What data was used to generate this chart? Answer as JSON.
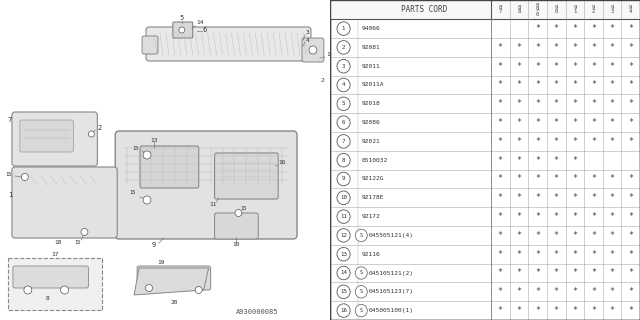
{
  "bg_color": "#ffffff",
  "diagram_ref": "A930000085",
  "parts": [
    {
      "num": "1",
      "code": "94066",
      "s_prefix": false,
      "stars": [
        0,
        0,
        1,
        1,
        1,
        1,
        1,
        1
      ]
    },
    {
      "num": "2",
      "code": "92081",
      "s_prefix": false,
      "stars": [
        1,
        1,
        1,
        1,
        1,
        1,
        1,
        1
      ]
    },
    {
      "num": "3",
      "code": "92011",
      "s_prefix": false,
      "stars": [
        1,
        1,
        1,
        1,
        1,
        1,
        1,
        1
      ]
    },
    {
      "num": "4",
      "code": "92011A",
      "s_prefix": false,
      "stars": [
        1,
        1,
        1,
        1,
        1,
        1,
        1,
        1
      ]
    },
    {
      "num": "5",
      "code": "92018",
      "s_prefix": false,
      "stars": [
        1,
        1,
        1,
        1,
        1,
        1,
        1,
        1
      ]
    },
    {
      "num": "6",
      "code": "92086",
      "s_prefix": false,
      "stars": [
        1,
        1,
        1,
        1,
        1,
        1,
        1,
        1
      ]
    },
    {
      "num": "7",
      "code": "92021",
      "s_prefix": false,
      "stars": [
        1,
        1,
        1,
        1,
        1,
        1,
        1,
        1
      ]
    },
    {
      "num": "8",
      "code": "0510032",
      "s_prefix": false,
      "stars": [
        1,
        1,
        1,
        1,
        1,
        0,
        0,
        0
      ]
    },
    {
      "num": "9",
      "code": "92122G",
      "s_prefix": false,
      "stars": [
        1,
        1,
        1,
        1,
        1,
        1,
        1,
        1
      ]
    },
    {
      "num": "10",
      "code": "92178E",
      "s_prefix": false,
      "stars": [
        1,
        1,
        1,
        1,
        1,
        1,
        1,
        1
      ]
    },
    {
      "num": "11",
      "code": "92172",
      "s_prefix": false,
      "stars": [
        1,
        1,
        1,
        1,
        1,
        1,
        1,
        1
      ]
    },
    {
      "num": "12",
      "code": "045505121(4)",
      "s_prefix": true,
      "stars": [
        1,
        1,
        1,
        1,
        1,
        1,
        1,
        1
      ]
    },
    {
      "num": "13",
      "code": "92116",
      "s_prefix": false,
      "stars": [
        1,
        1,
        1,
        1,
        1,
        1,
        1,
        1
      ]
    },
    {
      "num": "14",
      "code": "045105121(2)",
      "s_prefix": true,
      "stars": [
        1,
        1,
        1,
        1,
        1,
        1,
        1,
        1
      ]
    },
    {
      "num": "15",
      "code": "045105123(7)",
      "s_prefix": true,
      "stars": [
        1,
        1,
        1,
        1,
        1,
        1,
        1,
        1
      ]
    },
    {
      "num": "16",
      "code": "045005100(1)",
      "s_prefix": true,
      "stars": [
        1,
        1,
        1,
        1,
        1,
        1,
        1,
        1
      ]
    }
  ],
  "year_headers": [
    "8\n7",
    "8\n8",
    "8\n9\n0",
    "9\n0",
    "9\n1",
    "9\n2",
    "9\n3",
    "9\n4"
  ],
  "line_color": "#888888",
  "part_line_color": "#777777",
  "text_color": "#333333",
  "star_color": "#555555",
  "table_line_color": "#aaaaaa",
  "table_border_color": "#333333"
}
